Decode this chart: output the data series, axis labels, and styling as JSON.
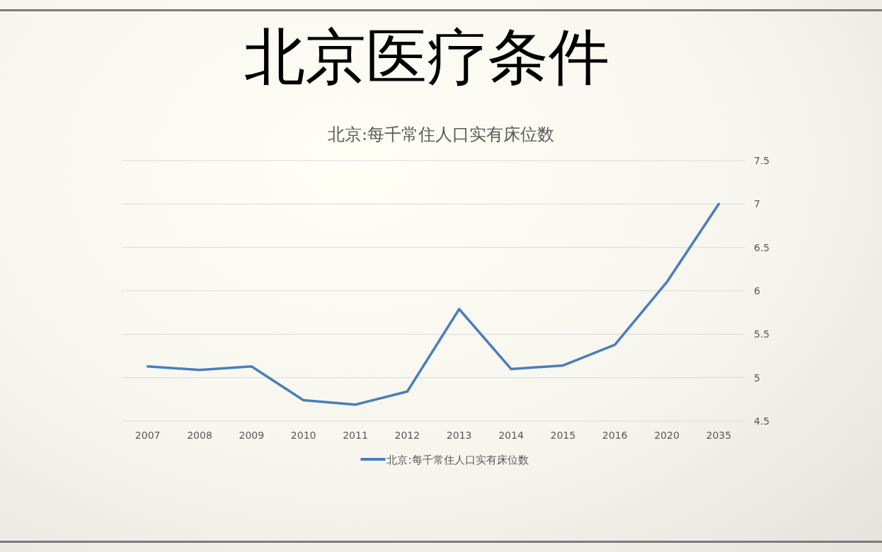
{
  "chart_data": {
    "type": "line",
    "title": "北京医疗条件",
    "subtitle": "北京:每千常住人口实有床位数",
    "categories": [
      "2007",
      "2008",
      "2009",
      "2010",
      "2011",
      "2012",
      "2013",
      "2014",
      "2015",
      "2016",
      "2020",
      "2035"
    ],
    "series": [
      {
        "name": "北京:每千常住人口实有床位数",
        "color": "#4a7ebb",
        "values": [
          5.13,
          5.09,
          5.13,
          4.74,
          4.69,
          4.84,
          5.79,
          5.1,
          5.14,
          5.38,
          6.1,
          7.0
        ]
      }
    ],
    "ylim": [
      4.5,
      7.5
    ],
    "yticks": [
      4.5,
      5,
      5.5,
      6,
      6.5,
      7,
      7.5
    ],
    "grid": "y",
    "legend": "bottom",
    "marker": "none",
    "line_style": "solid"
  }
}
